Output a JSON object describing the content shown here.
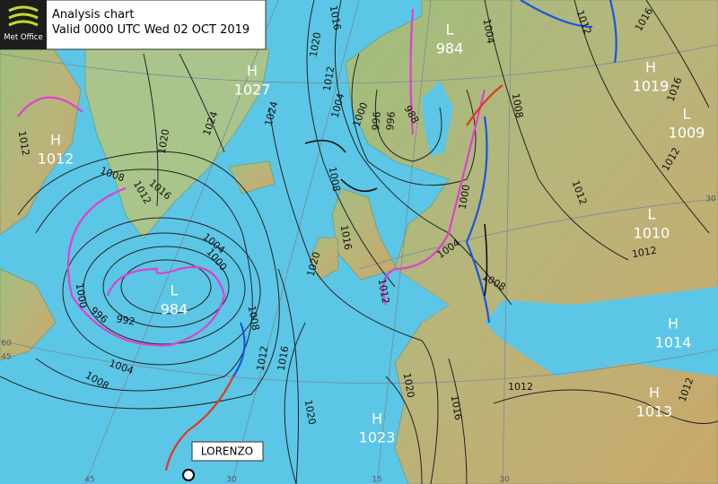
{
  "header": {
    "logo": "Met Office",
    "title": "Analysis chart",
    "valid": "Valid 0000 UTC Wed 02 OCT 2019"
  },
  "storm_label": "LORENZO",
  "centres": [
    {
      "kind": "H",
      "value": 1027
    },
    {
      "kind": "L",
      "value": 984
    },
    {
      "kind": "H",
      "value": 1019
    },
    {
      "kind": "L",
      "value": 1009
    },
    {
      "kind": "H",
      "value": 1012
    },
    {
      "kind": "L",
      "value": 1010
    },
    {
      "kind": "L",
      "value": 984
    },
    {
      "kind": "H",
      "value": 1014
    },
    {
      "kind": "H",
      "value": 1013
    },
    {
      "kind": "H",
      "value": 1023
    }
  ],
  "isobar_labels": [
    1016,
    1020,
    1012,
    1004,
    1000,
    996,
    996,
    988,
    1004,
    1008,
    1012,
    1016,
    1016,
    1012,
    1012,
    1012,
    1024,
    1024,
    1020,
    1008,
    1012,
    1016,
    1004,
    1000,
    1008,
    1012,
    1016,
    1000,
    996,
    992,
    1004,
    1008,
    1012,
    1020,
    1016,
    1008,
    1000,
    1004,
    1012,
    1008,
    1020,
    1016,
    1012,
    1012,
    1020
  ],
  "graticule_labels": [
    60,
    45,
    45,
    30,
    15,
    30,
    30
  ]
}
